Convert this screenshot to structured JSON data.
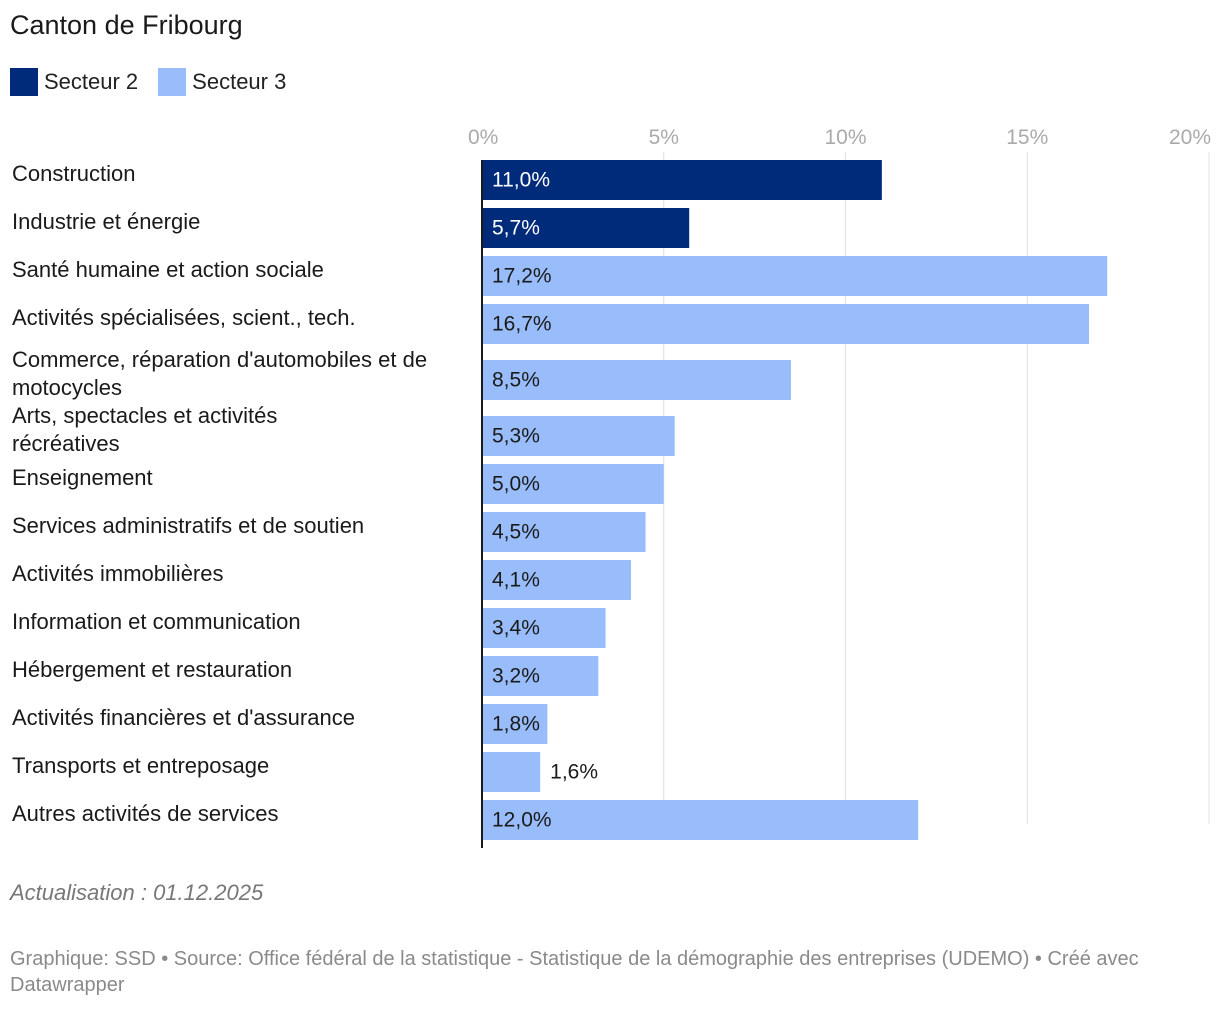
{
  "chart_data": {
    "type": "bar",
    "orientation": "horizontal",
    "title": "Canton de Fribourg",
    "xlim": [
      0,
      20
    ],
    "ticks": [
      0,
      5,
      10,
      15,
      20
    ],
    "tick_labels": [
      "0%",
      "5%",
      "10%",
      "15%",
      "20%"
    ],
    "grid": true,
    "legend": [
      {
        "name": "Secteur 2",
        "color": "#002a7a"
      },
      {
        "name": "Secteur 3",
        "color": "#98bdfa"
      }
    ],
    "categories": [
      "Construction",
      "Industrie et énergie",
      "Santé humaine et action sociale",
      "Activités spécialisées, scient., tech.",
      "Commerce, réparation d'automobiles et de motocycles",
      "Arts, spectacles et activités récréatives",
      "Enseignement",
      "Services administratifs et de soutien",
      "Activités immobilières",
      "Information et communication",
      "Hébergement et restauration",
      "Activités financières et d'assurance",
      "Transports et entreposage",
      "Autres activités de services"
    ],
    "values": [
      11.0,
      5.7,
      17.2,
      16.7,
      8.5,
      5.3,
      5.0,
      4.5,
      4.1,
      3.4,
      3.2,
      1.8,
      1.6,
      12.0
    ],
    "value_labels": [
      "11,0%",
      "5,7%",
      "17,2%",
      "16,7%",
      "8,5%",
      "5,3%",
      "5,0%",
      "4,5%",
      "4,1%",
      "3,4%",
      "3,2%",
      "1,8%",
      "1,6%",
      "12,0%"
    ],
    "sector": [
      "Secteur 2",
      "Secteur 2",
      "Secteur 3",
      "Secteur 3",
      "Secteur 3",
      "Secteur 3",
      "Secteur 3",
      "Secteur 3",
      "Secteur 3",
      "Secteur 3",
      "Secteur 3",
      "Secteur 3",
      "Secteur 3",
      "Secteur 3"
    ]
  },
  "footer": {
    "update": "Actualisation : 01.12.2025",
    "source": "Graphique: SSD • Source: Office fédéral de la statistique - Statistique de la démographie des entreprises (UDEMO) • Créé avec Datawrapper"
  }
}
